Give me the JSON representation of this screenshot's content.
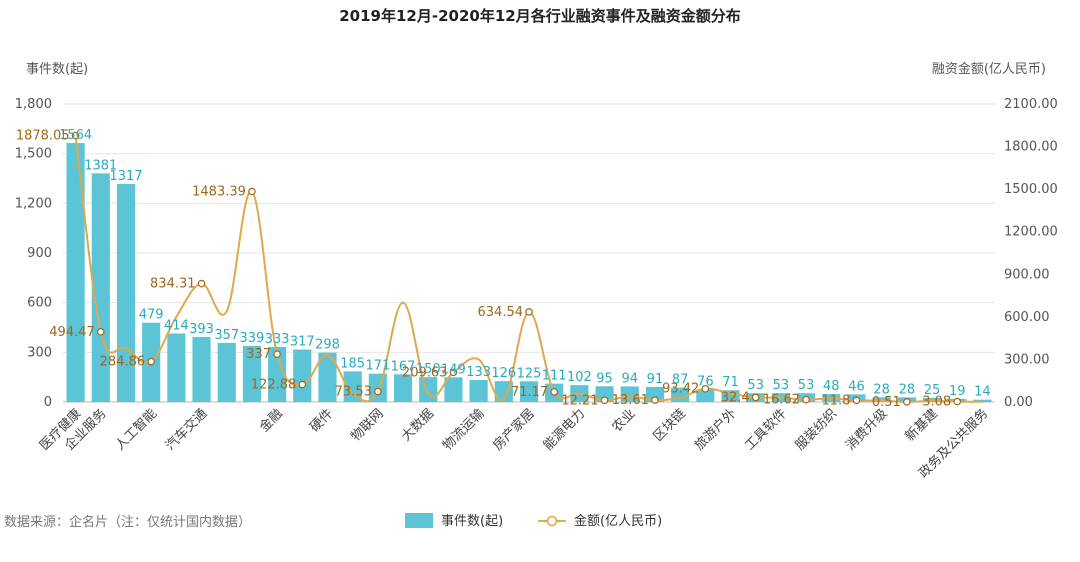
{
  "chart_data": {
    "type": "bar",
    "title": "2019年12月-2020年12月各行业融资事件及融资金额分布",
    "ylabel_left": "事件数(起)",
    "ylabel_right": "融资金额(亿人民币)",
    "source": "数据来源：企名片（注：仅统计国内数据）",
    "left_axis": {
      "min": 0,
      "max": 1800,
      "ticks": [
        "0",
        "300",
        "600",
        "900",
        "1,200",
        "1,500",
        "1,800"
      ]
    },
    "right_axis": {
      "min": 0,
      "max": 2100,
      "ticks": [
        "0.00",
        "300.00",
        "600.00",
        "900.00",
        "1200.00",
        "1500.00",
        "1800.00",
        "2100.00"
      ]
    },
    "categories": [
      "医疗健康",
      "企业服务",
      "汽车交通_a",
      "人工智能",
      "汽车交通_b",
      "汽车交通",
      "金融_a",
      "金融_b",
      "金融",
      "硬件_a",
      "硬件",
      "物联网_a",
      "物联网",
      "大数据_a",
      "大数据",
      "物流运输_a",
      "物流运输",
      "房产家居_a",
      "房产家居",
      "能源电力_a",
      "能源电力",
      "农业_a",
      "农业",
      "区块链_a",
      "区块链",
      "旅游户外_a",
      "旅游户外",
      "工具软件_a",
      "工具软件",
      "服装纺织_a",
      "服装纺织",
      "消费升级_a",
      "消费升级",
      "新基建_a",
      "新基建",
      "政务及公共服务_a",
      "政务及公共服务"
    ],
    "category_labels": [
      "医疗健康",
      "企业服务",
      "",
      "人工智能",
      "",
      "汽车交通",
      "",
      "",
      "金融",
      "",
      "硬件",
      "",
      "物联网",
      "",
      "大数据",
      "",
      "物流运输",
      "",
      "房产家居",
      "",
      "能源电力",
      "",
      "农业",
      "",
      "区块链",
      "",
      "旅游户外",
      "",
      "工具软件",
      "",
      "服装纺织",
      "",
      "消费升级",
      "",
      "新基建",
      "",
      "政务及公共服务"
    ],
    "series": [
      {
        "name": "事件数(起)",
        "type": "bar",
        "axis": "left",
        "color": "#5bc4d6",
        "values": [
          1564,
          1381,
          1317,
          479,
          414,
          393,
          357,
          339,
          333,
          317,
          298,
          185,
          171,
          167,
          150,
          149,
          133,
          126,
          125,
          111,
          102,
          95,
          94,
          91,
          87,
          76,
          71,
          53,
          53,
          53,
          48,
          46,
          28,
          28,
          25,
          19,
          14
        ],
        "labels": [
          "1564",
          "1381",
          "1317",
          "479",
          "414",
          "393",
          "357",
          "339",
          "333",
          "317",
          "298",
          "185",
          "171",
          "167",
          "150",
          "149",
          "133",
          "126",
          "125",
          "111",
          "102",
          "95",
          "94",
          "91",
          "87",
          "76",
          "71",
          "53",
          "53",
          "53",
          "48",
          "46",
          "28",
          "28",
          "25",
          "19",
          "14"
        ]
      },
      {
        "name": "金额(亿人民币)",
        "type": "line",
        "axis": "right",
        "color": "#e0a84a",
        "values": [
          1878.05,
          494.47,
          380,
          284.86,
          600,
          834.31,
          640,
          1483.39,
          337,
          122.88,
          330,
          60,
          73.53,
          700,
          60,
          209.63,
          300,
          20,
          634.54,
          71.17,
          60,
          12.21,
          40,
          13.61,
          30,
          93.42,
          60,
          32.4,
          30,
          16.62,
          25,
          11.8,
          10,
          0.51,
          8,
          3.08,
          2
        ],
        "labels": [
          "1878.05",
          "494.47",
          "",
          "284.86",
          "",
          "834.31",
          "",
          "1483.39",
          "337",
          "122.88",
          "",
          "",
          "73.53",
          "",
          "",
          "209.63",
          "",
          "",
          "634.54",
          "71.17",
          "",
          "12.21",
          "",
          "13.61",
          "",
          "93.42",
          "",
          "32.4",
          "",
          "16.62",
          "",
          "11.8",
          "",
          "0.51",
          "",
          "3.08",
          ""
        ]
      }
    ],
    "legend": {
      "placement": "bottom-center",
      "items": [
        "事件数(起)",
        "金额(亿人民币)"
      ]
    }
  }
}
